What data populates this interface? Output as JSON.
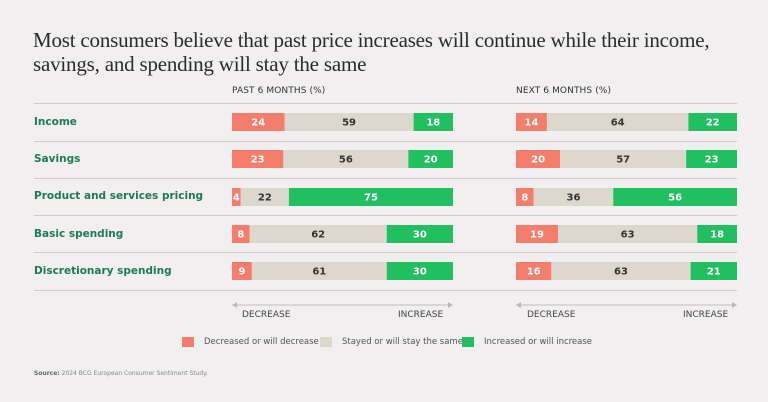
{
  "title": "Most consumers believe that past price increases will continue while their income, savings, and spending will stay the same",
  "panels": [
    {
      "header": "PAST 6 MONTHS (%)",
      "decrease_label": "DECREASE",
      "increase_label": "INCREASE"
    },
    {
      "header": "NEXT 6 MONTHS (%)",
      "decrease_label": "DECREASE",
      "increase_label": "INCREASE"
    }
  ],
  "rows": [
    {
      "label": "Income"
    },
    {
      "label": "Savings"
    },
    {
      "label": "Product and services pricing"
    },
    {
      "label": "Basic spending"
    },
    {
      "label": "Discretionary spending"
    }
  ],
  "legend": [
    {
      "label": "Decreased or will decrease",
      "color": "#f47e6b"
    },
    {
      "label": "Stayed or will stay the same",
      "color": "#ddd8ce"
    },
    {
      "label": "Increased or will increase",
      "color": "#22bf60"
    }
  ],
  "source_label": "Source:",
  "source_text": "2024 BCG European Consumer Sentiment Study.",
  "chart_data": {
    "type": "bar",
    "orientation": "horizontal-stacked-100",
    "title": "Most consumers believe that past price increases will continue while their income, savings, and spending will stay the same",
    "categories": [
      "Income",
      "Savings",
      "Product and services pricing",
      "Basic spending",
      "Discretionary spending"
    ],
    "panels": [
      {
        "name": "PAST 6 MONTHS (%)",
        "series": [
          {
            "name": "Decreased or will decrease",
            "color": "#f47e6b",
            "values": [
              24,
              23,
              4,
              8,
              9
            ]
          },
          {
            "name": "Stayed or will stay the same",
            "color": "#ddd8ce",
            "values": [
              59,
              56,
              22,
              62,
              61
            ]
          },
          {
            "name": "Increased or will increase",
            "color": "#22bf60",
            "values": [
              18,
              20,
              75,
              30,
              30
            ]
          }
        ]
      },
      {
        "name": "NEXT 6 MONTHS (%)",
        "series": [
          {
            "name": "Decreased or will decrease",
            "color": "#f47e6b",
            "values": [
              14,
              20,
              8,
              19,
              16
            ]
          },
          {
            "name": "Stayed or will stay the same",
            "color": "#ddd8ce",
            "values": [
              64,
              57,
              36,
              63,
              63
            ]
          },
          {
            "name": "Increased or will increase",
            "color": "#22bf60",
            "values": [
              22,
              23,
              56,
              18,
              21
            ]
          }
        ]
      }
    ],
    "xlabel": "DECREASE ← → INCREASE",
    "legend_position": "bottom",
    "grid": false
  }
}
